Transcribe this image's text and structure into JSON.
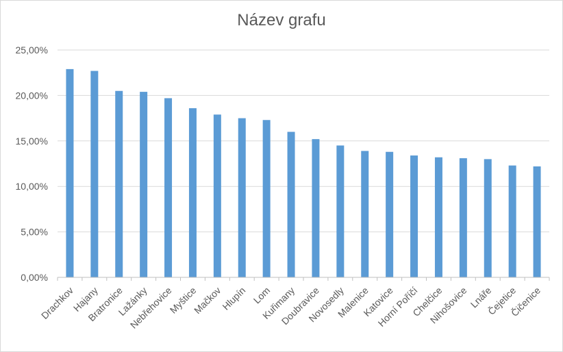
{
  "chart_data": {
    "type": "bar",
    "title": "Název grafu",
    "xlabel": "",
    "ylabel": "",
    "ylim": [
      0,
      0.25
    ],
    "yticks": [
      0,
      0.05,
      0.1,
      0.15,
      0.2,
      0.25
    ],
    "ytick_labels": [
      "0,00%",
      "5,00%",
      "10,00%",
      "15,00%",
      "20,00%",
      "25,00%"
    ],
    "grid": true,
    "legend": "none",
    "bar_color": "#5b9bd5",
    "categories": [
      "Drachkov",
      "Hajany",
      "Bratronice",
      "Lažánky",
      "Nebřehovice",
      "Myštice",
      "Mačkov",
      "Hlupín",
      "Lom",
      "Kuřimany",
      "Doubravice",
      "Novosedly",
      "Malenice",
      "Katovice",
      "Horní Poříčí",
      "Chelčice",
      "Nihošovice",
      "Lnáře",
      "Čejetice",
      "Čičenice"
    ],
    "values": [
      0.229,
      0.227,
      0.205,
      0.204,
      0.197,
      0.186,
      0.179,
      0.175,
      0.173,
      0.16,
      0.152,
      0.145,
      0.139,
      0.138,
      0.134,
      0.132,
      0.131,
      0.13,
      0.123,
      0.122
    ]
  }
}
